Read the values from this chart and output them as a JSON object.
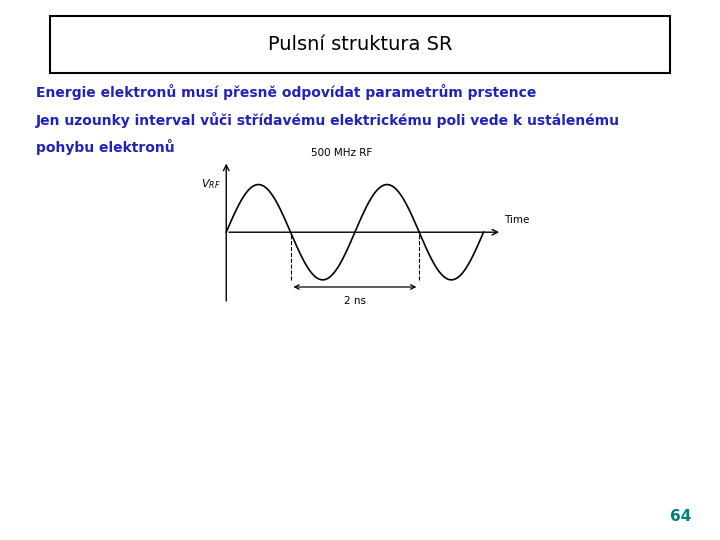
{
  "title": "Pulsní struktura SR",
  "line1": "Energie elektronů musí přesně odpovídat parametrům prstence",
  "line2": "Jen uzounky interval vůči střídavému elektrickému poli vede k ustálenému",
  "line3": "pohybu elektronů",
  "text_color": "#2222bb",
  "title_color": "#000000",
  "page_number": "64",
  "page_number_color": "#008080",
  "background_color": "#ffffff",
  "diagram_label_top": "500 MHz RF",
  "diagram_label_time": "Time",
  "diagram_label_2ns": "2 ns",
  "sine_color": "#000000",
  "axis_color": "#000000",
  "box_color": "#c8d8e8"
}
